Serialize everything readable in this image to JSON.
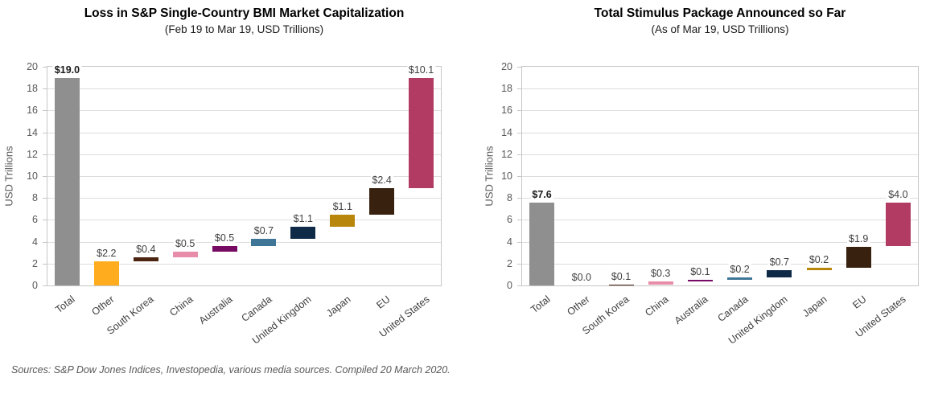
{
  "figure": {
    "footer": "Sources: S&P Dow Jones Indices, Investopedia, various media sources.  Compiled 20 March 2020."
  },
  "palette": {
    "Total": "#8F8F8F",
    "Other": "#FFAD1E",
    "South Korea": "#4A2410",
    "China": "#E78CA9",
    "Australia": "#770B64",
    "Canada": "#3F7697",
    "United Kingdom": "#0E2A47",
    "Japan": "#B8860B",
    "EU": "#38220F",
    "United States": "#B13B63",
    "gridline": "#DDDDDD",
    "frame": "#C6C6C6",
    "tick_label": "#595959",
    "data_label": "#3F3F3F",
    "data_label_total": "#1A1A1A"
  },
  "chart_data": [
    {
      "type": "bar",
      "subtype": "waterfall",
      "title": "Loss in S&P Single-Country  BMI Market Capitalization",
      "subtitle": "(Feb 19 to Mar 19, USD Trillions)",
      "ylabel": "USD Trillions",
      "xlabel": "",
      "ylim": [
        0,
        20
      ],
      "ytick_step": 2,
      "grid": true,
      "legend": false,
      "categories": [
        "Total",
        "Other",
        "South Korea",
        "China",
        "Australia",
        "Canada",
        "United Kingdom",
        "Japan",
        "EU",
        "United States"
      ],
      "values": [
        19.0,
        2.2,
        0.4,
        0.5,
        0.5,
        0.7,
        1.1,
        1.1,
        2.4,
        10.1
      ],
      "labels": [
        "$19.0",
        "$2.2",
        "$0.4",
        "$0.5",
        "$0.5",
        "$0.7",
        "$1.1",
        "$1.1",
        "$2.4",
        "$10.1"
      ],
      "bar_start": [
        0,
        0,
        2.2,
        2.6,
        3.1,
        3.6,
        4.3,
        5.4,
        6.5,
        8.9
      ],
      "bar_end": [
        19.0,
        2.2,
        2.6,
        3.1,
        3.6,
        4.3,
        5.4,
        6.5,
        8.9,
        19.0
      ],
      "total_indices": [
        0
      ]
    },
    {
      "type": "bar",
      "subtype": "waterfall",
      "title": "Total Stimulus Package Announced so Far",
      "subtitle": "(As of Mar 19, USD Trillions)",
      "ylabel": "USD Trillions",
      "xlabel": "",
      "ylim": [
        0,
        20
      ],
      "ytick_step": 2,
      "grid": true,
      "legend": false,
      "categories": [
        "Total",
        "Other",
        "South Korea",
        "China",
        "Australia",
        "Canada",
        "United Kingdom",
        "Japan",
        "EU",
        "United States"
      ],
      "values": [
        7.6,
        0.0,
        0.1,
        0.3,
        0.1,
        0.2,
        0.7,
        0.2,
        1.9,
        4.0
      ],
      "labels": [
        "$7.6",
        "$0.0",
        "$0.1",
        "$0.3",
        "$0.1",
        "$0.2",
        "$0.7",
        "$0.2",
        "$1.9",
        "$4.0"
      ],
      "bar_start": [
        0,
        0,
        0,
        0.1,
        0.4,
        0.5,
        0.7,
        1.4,
        1.6,
        3.6
      ],
      "bar_end": [
        7.6,
        0.0,
        0.1,
        0.4,
        0.5,
        0.7,
        1.4,
        1.6,
        3.5,
        7.6
      ],
      "total_indices": [
        0
      ]
    }
  ]
}
